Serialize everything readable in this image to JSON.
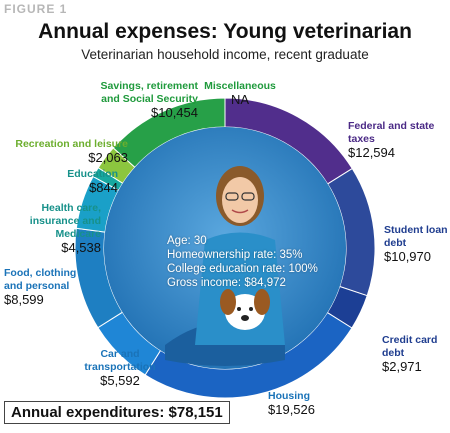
{
  "figure_label": "FIGURE 1",
  "chart_data": {
    "type": "pie",
    "title": "Annual expenses: Young veterinarian",
    "subtitle": "Veterinarian household income, recent graduate",
    "slices": [
      {
        "category": "Miscellaneous",
        "value_text": "NA",
        "value": 0
      },
      {
        "category": "Federal and state taxes",
        "value_text": "$12,594",
        "value": 12594,
        "color": "#512e8c"
      },
      {
        "category": "Student loan debt",
        "value_text": "$10,970",
        "value": 10970,
        "color": "#2d4a9b"
      },
      {
        "category": "Credit card debt",
        "value_text": "$2,971",
        "value": 2971,
        "color": "#1c3f95"
      },
      {
        "category": "Housing",
        "value_text": "$19,526",
        "value": 19526,
        "color": "#1b64c3"
      },
      {
        "category": "Car and transportation",
        "value_text": "$5,592",
        "value": 5592,
        "color": "#1f86d6"
      },
      {
        "category": "Food, clothing and personal",
        "value_text": "$8,599",
        "value": 8599,
        "color": "#1e7fc2"
      },
      {
        "category": "Health care, insurance and Medicare",
        "value_text": "$4,538",
        "value": 4538,
        "color": "#1aa0c8"
      },
      {
        "category": "Education",
        "value_text": "$844",
        "value": 844,
        "color": "#17a8a0"
      },
      {
        "category": "Recreation and leisure",
        "value_text": "$2,063",
        "value": 2063,
        "color": "#8cc63f"
      },
      {
        "category": "Savings, retirement and Social Security",
        "value_text": "$10,454",
        "value": 10454,
        "color": "#27a048"
      }
    ],
    "center_stats": [
      "Age: 30",
      "Homeownership rate: 35%",
      "College education rate: 100%",
      "Gross income: $84,972"
    ],
    "total_text": "Annual expenditures: $78,151"
  },
  "colors": {
    "label_green": "#1f9a3c",
    "label_lightgreen": "#6cae2e",
    "label_teal": "#17918a",
    "label_blue": "#1a73b8",
    "label_navy": "#1f3d8f",
    "label_purple": "#4b2a86",
    "center_bg": "#2b83c6"
  }
}
